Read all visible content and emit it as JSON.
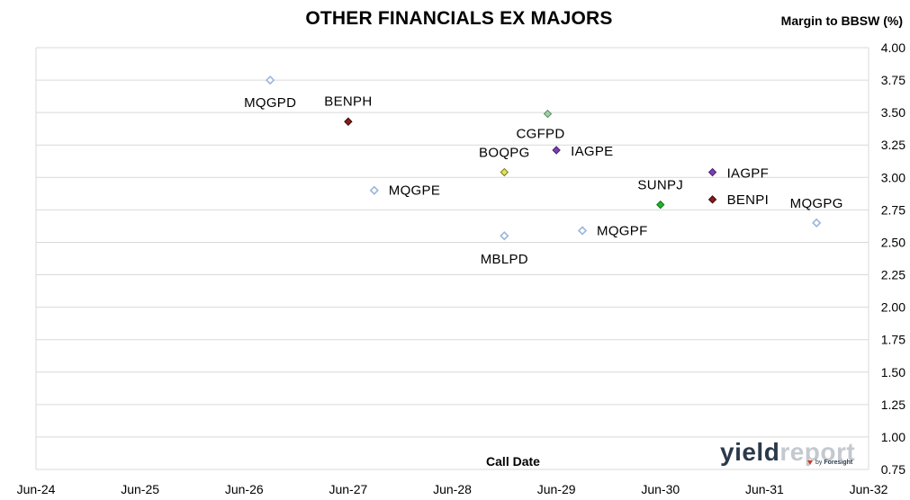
{
  "chart_data": {
    "type": "scatter",
    "title": "OTHER FINANCIALS EX MAJORS",
    "xlabel": "Call Date",
    "ylabel": "Margin to BBSW (%)",
    "ylim": [
      0.75,
      4.0
    ],
    "yticks": [
      "0.75",
      "1.00",
      "1.25",
      "1.50",
      "1.75",
      "2.00",
      "2.25",
      "2.50",
      "2.75",
      "3.00",
      "3.25",
      "3.50",
      "3.75",
      "4.00"
    ],
    "xlim": [
      "2024-06",
      "2032-06"
    ],
    "xticks": [
      "Jun-24",
      "Jun-25",
      "Jun-26",
      "Jun-27",
      "Jun-28",
      "Jun-29",
      "Jun-30",
      "Jun-31",
      "Jun-32"
    ],
    "grid": "horizontal",
    "points": [
      {
        "label": "MQGPD",
        "date": "2026-09",
        "y": 3.75,
        "color": "#c9d9ef",
        "outline": "#9ab6dc"
      },
      {
        "label": "BENPH",
        "date": "2027-06",
        "y": 3.43,
        "color": "#8b1a1a",
        "outline": "#3a0a0a"
      },
      {
        "label": "MQGPE",
        "date": "2027-09",
        "y": 2.9,
        "color": "#c9d9ef",
        "outline": "#9ab6dc"
      },
      {
        "label": "MBLPD",
        "date": "2028-12",
        "y": 2.55,
        "color": "#c9d9ef",
        "outline": "#9ab6dc"
      },
      {
        "label": "BOQPG",
        "date": "2028-12",
        "y": 3.04,
        "color": "#e3e35a",
        "outline": "#7a7a20"
      },
      {
        "label": "CGFPD",
        "date": "2029-05",
        "y": 3.49,
        "color": "#9fd3a6",
        "outline": "#5a8c60"
      },
      {
        "label": "IAGPE",
        "date": "2029-06",
        "y": 3.21,
        "color": "#7a3fb0",
        "outline": "#4a2070"
      },
      {
        "label": "MQGPF",
        "date": "2029-09",
        "y": 2.59,
        "color": "#c9d9ef",
        "outline": "#9ab6dc"
      },
      {
        "label": "SUNPJ",
        "date": "2030-06",
        "y": 2.79,
        "color": "#22b42c",
        "outline": "#137018"
      },
      {
        "label": "IAGPF",
        "date": "2030-12",
        "y": 3.04,
        "color": "#7a3fb0",
        "outline": "#4a2070"
      },
      {
        "label": "BENPI",
        "date": "2030-12",
        "y": 2.83,
        "color": "#8b1a1a",
        "outline": "#3a0a0a"
      },
      {
        "label": "MQGPG",
        "date": "2031-12",
        "y": 2.65,
        "color": "#c9d9ef",
        "outline": "#9ab6dc"
      }
    ]
  },
  "logo": {
    "word_dark": "yield",
    "word_light": "report",
    "by": "by",
    "brand": "Foresight"
  }
}
